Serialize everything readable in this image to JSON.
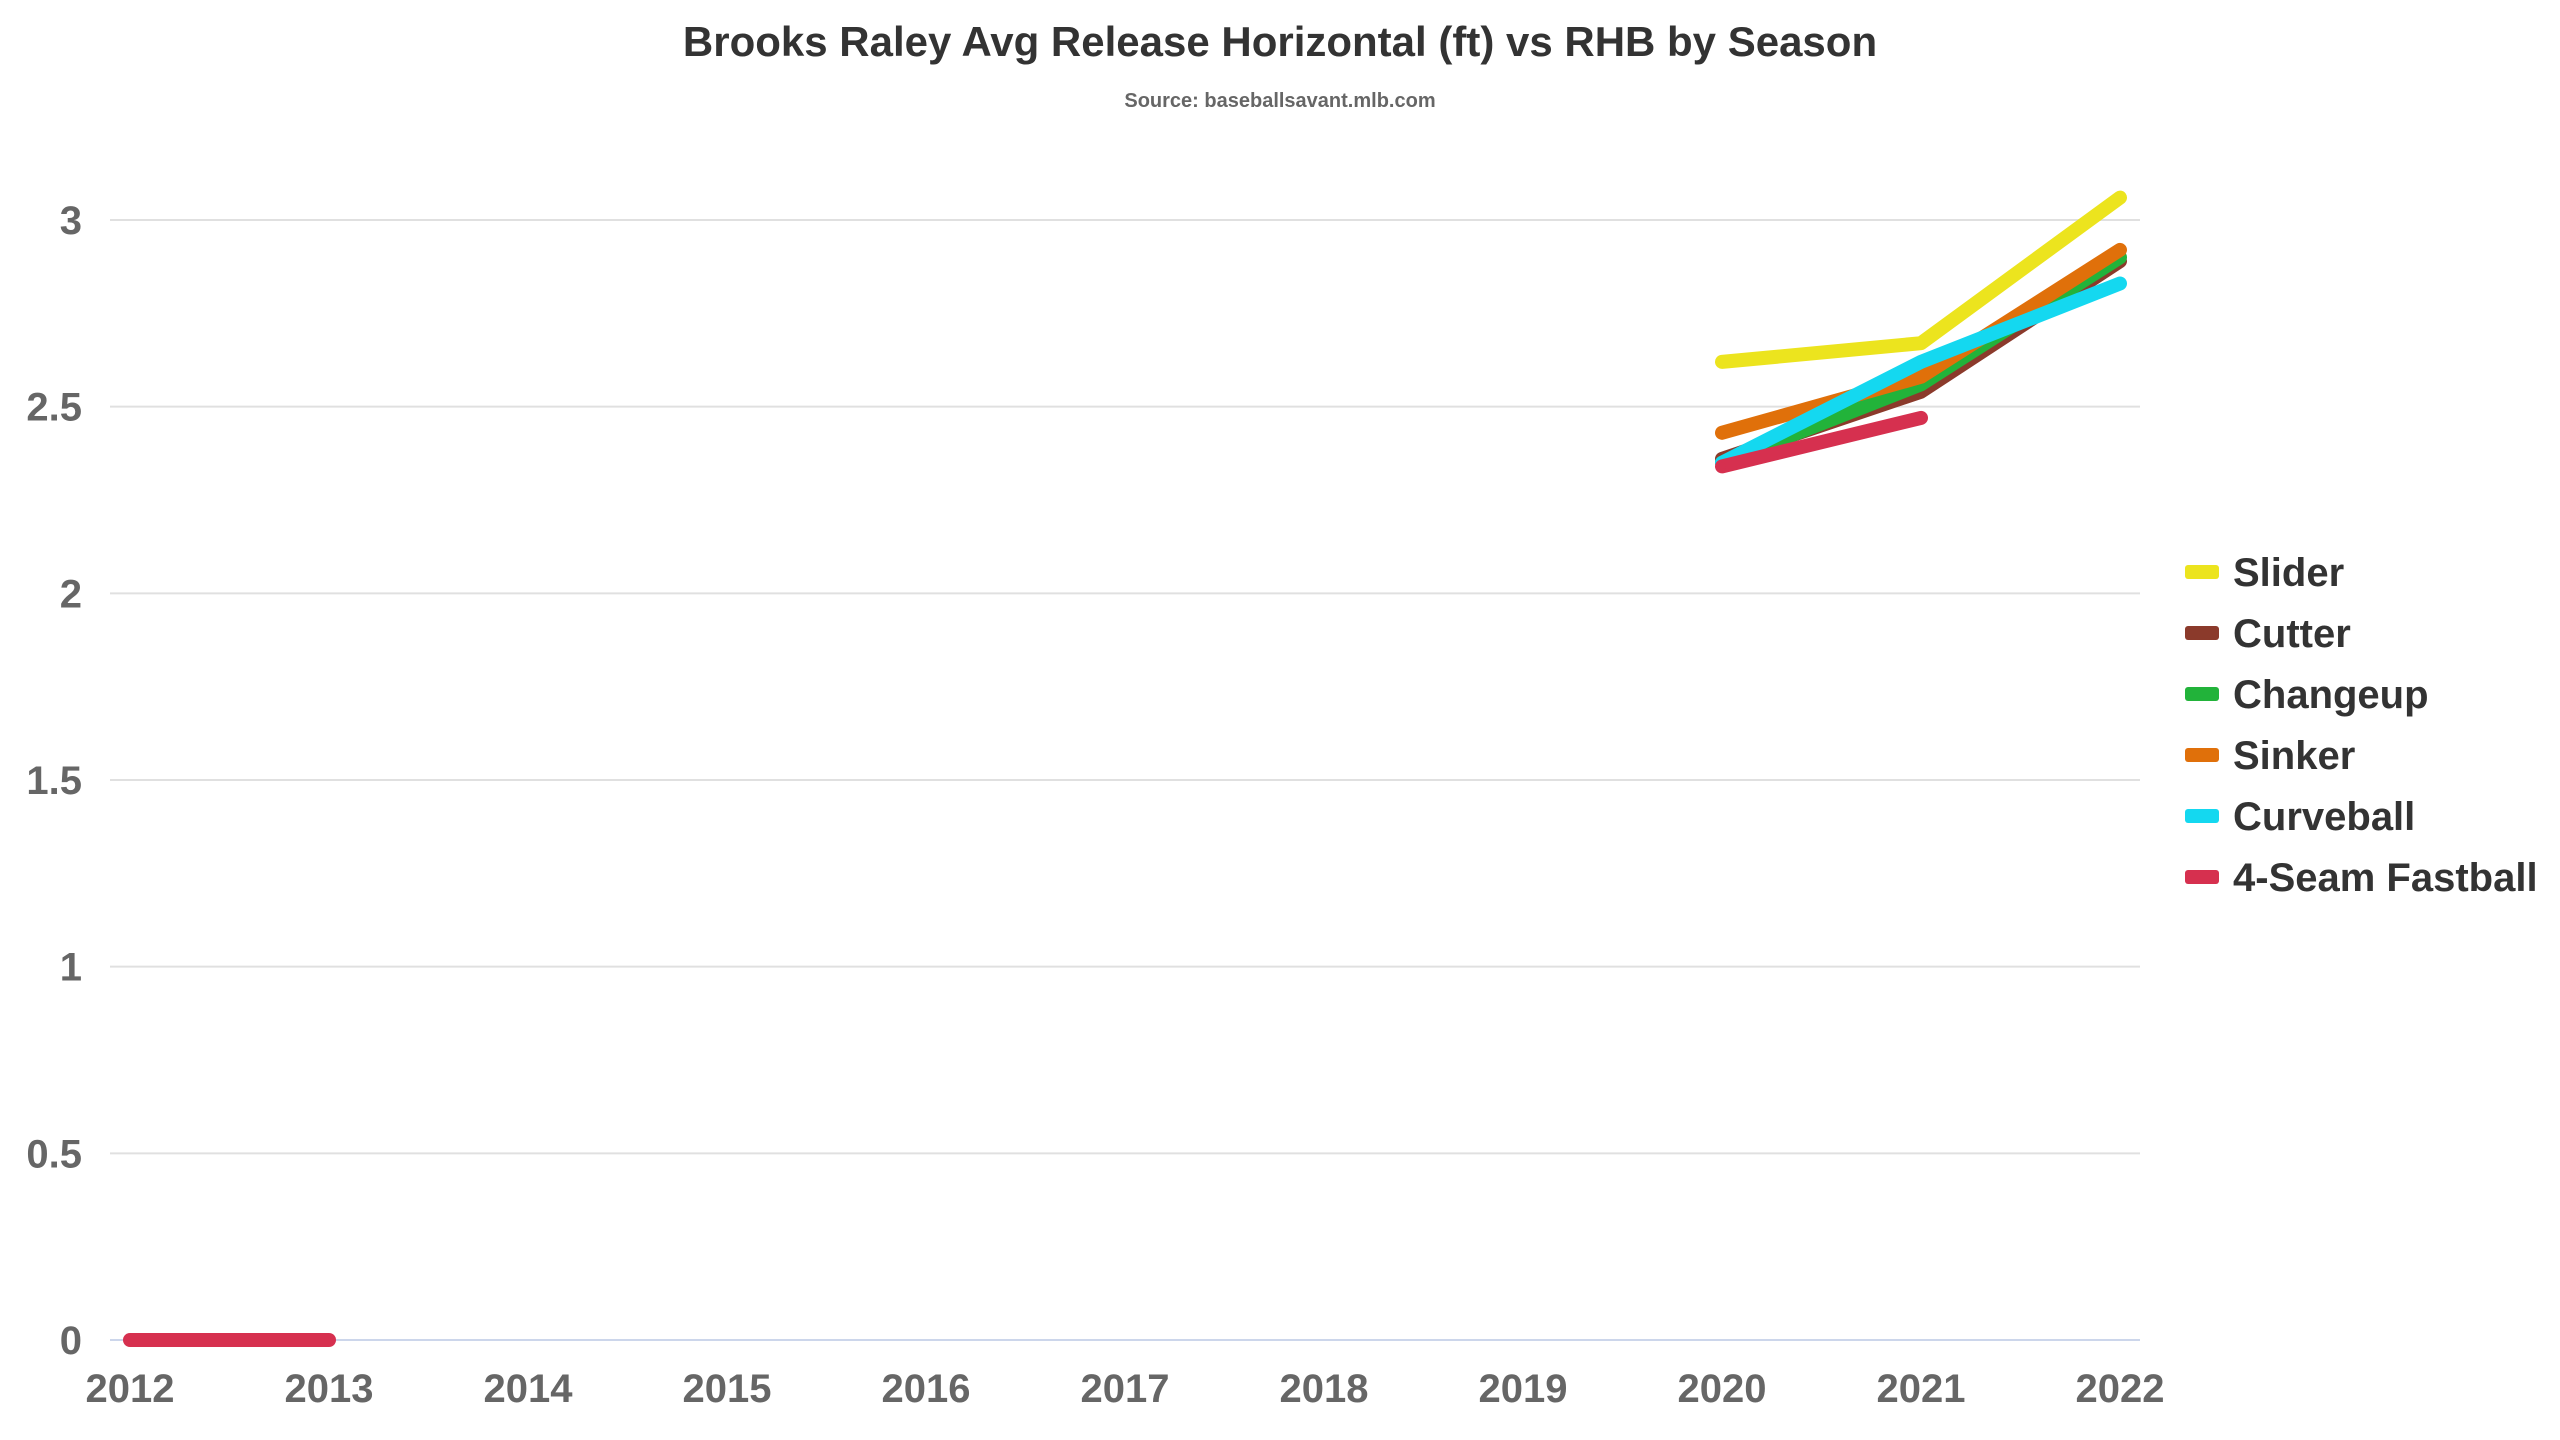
{
  "chart_data": {
    "type": "line",
    "title": "Brooks Raley Avg Release Horizontal (ft) vs RHB by Season",
    "subtitle": "Source: baseballsavant.mlb.com",
    "xlabel": "",
    "ylabel": "",
    "categories": [
      "2012",
      "2013",
      "2014",
      "2015",
      "2016",
      "2017",
      "2018",
      "2019",
      "2020",
      "2021",
      "2022"
    ],
    "ylim": [
      0,
      3.2
    ],
    "yticks": [
      0,
      0.5,
      1,
      1.5,
      2,
      2.5,
      3
    ],
    "ytick_labels": [
      "0",
      "0.5",
      "1",
      "1.5",
      "2",
      "2.5",
      "3"
    ],
    "grid": true,
    "legend_position": "right",
    "series": [
      {
        "name": "4-Seam Fastball",
        "color": "#d6304f",
        "values": [
          0,
          0,
          null,
          null,
          null,
          null,
          null,
          null,
          2.34,
          2.47,
          null
        ]
      },
      {
        "name": "Cutter",
        "color": "#8b3a2b",
        "values": [
          null,
          null,
          null,
          null,
          null,
          null,
          null,
          null,
          2.36,
          2.54,
          2.89
        ]
      },
      {
        "name": "Changeup",
        "color": "#22b33a",
        "values": [
          null,
          null,
          null,
          null,
          null,
          null,
          null,
          null,
          2.35,
          2.56,
          2.9
        ]
      },
      {
        "name": "Sinker",
        "color": "#e0700a",
        "values": [
          null,
          null,
          null,
          null,
          null,
          null,
          null,
          null,
          2.43,
          2.58,
          2.92
        ]
      },
      {
        "name": "Curveball",
        "color": "#14d8f0",
        "values": [
          null,
          null,
          null,
          null,
          null,
          null,
          null,
          null,
          2.35,
          2.62,
          2.83
        ]
      },
      {
        "name": "Slider",
        "color": "#ece41e",
        "values": [
          null,
          null,
          null,
          null,
          null,
          null,
          null,
          null,
          2.62,
          2.67,
          3.06
        ]
      }
    ],
    "legend_order": [
      "Slider",
      "Cutter",
      "Changeup",
      "Sinker",
      "Curveball",
      "4-Seam Fastball"
    ]
  }
}
